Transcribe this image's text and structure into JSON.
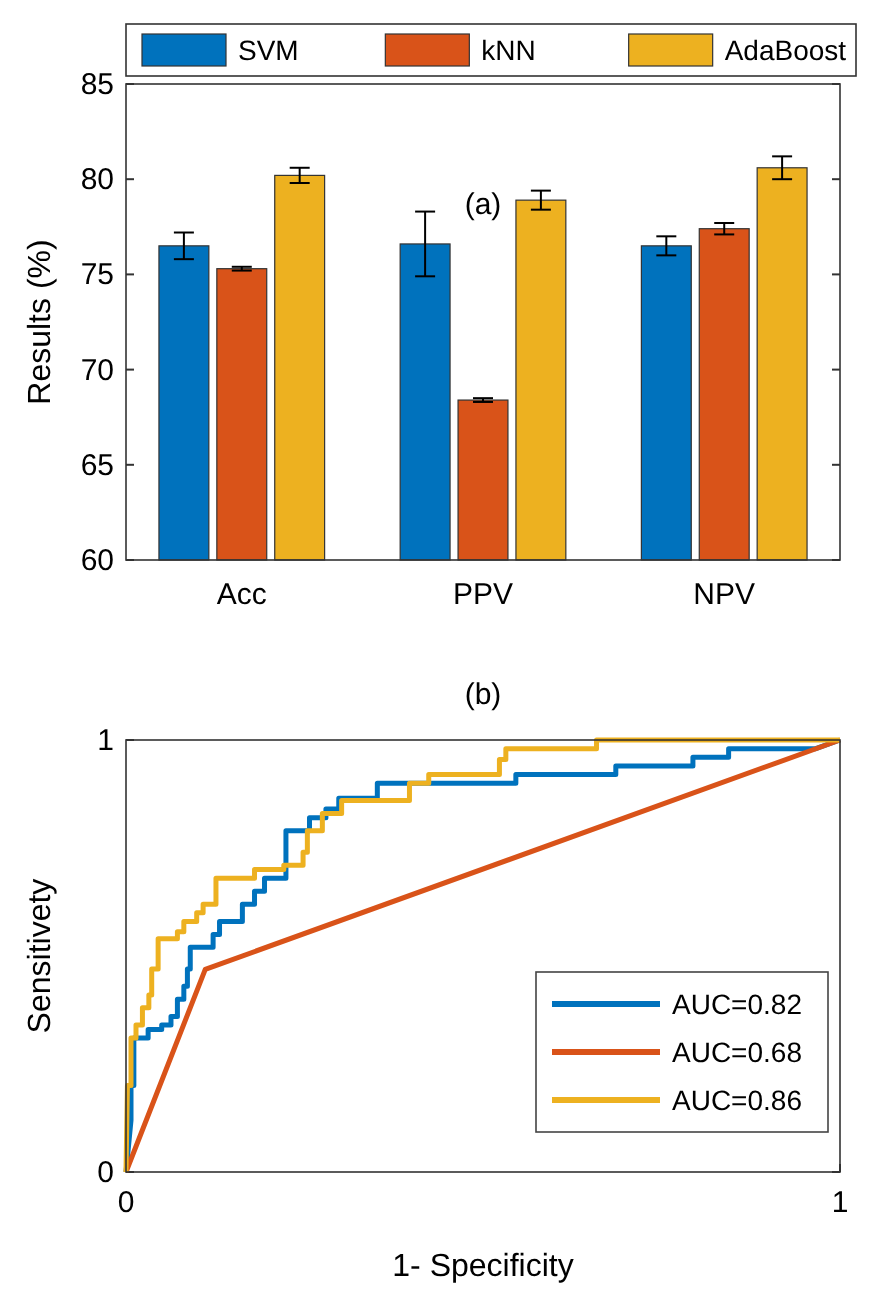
{
  "chart_data": [
    {
      "type": "bar",
      "title": "(a)",
      "ylabel": "Results (%)",
      "categories": [
        "Acc",
        "PPV",
        "NPV"
      ],
      "ylim": [
        60,
        85
      ],
      "yticks": [
        60,
        65,
        70,
        75,
        80,
        85
      ],
      "legend": "top",
      "grid": false,
      "series": [
        {
          "name": "SVM",
          "color": "#0072bd",
          "values": [
            76.5,
            76.6,
            76.5
          ],
          "errors": [
            0.7,
            1.7,
            0.5
          ]
        },
        {
          "name": "kNN",
          "color": "#d95319",
          "values": [
            75.3,
            68.4,
            77.4
          ],
          "errors": [
            0.1,
            0.1,
            0.3
          ]
        },
        {
          "name": "AdaBoost",
          "color": "#edb120",
          "values": [
            80.2,
            78.9,
            80.6
          ],
          "errors": [
            0.4,
            0.5,
            0.6
          ]
        }
      ]
    },
    {
      "type": "line",
      "title": "(b)",
      "xlabel": "1- Specificity",
      "ylabel": "Sensitivety",
      "xlim": [
        0,
        1
      ],
      "ylim": [
        0,
        1
      ],
      "xticks": [
        0,
        1
      ],
      "yticks": [
        0,
        1
      ],
      "legend": "bottom right",
      "grid": false,
      "marker": "none",
      "line_style": "solid",
      "series": [
        {
          "name": "AUC=0.82",
          "color": "#0072bd",
          "x": [
            0,
            0.007,
            0.007,
            0.011,
            0.011,
            0.031,
            0.031,
            0.05,
            0.05,
            0.063,
            0.063,
            0.072,
            0.072,
            0.081,
            0.081,
            0.086,
            0.086,
            0.09,
            0.09,
            0.122,
            0.122,
            0.131,
            0.131,
            0.163,
            0.163,
            0.18,
            0.18,
            0.194,
            0.194,
            0.224,
            0.224,
            0.257,
            0.257,
            0.28,
            0.28,
            0.298,
            0.298,
            0.352,
            0.352,
            0.546,
            0.546,
            0.686,
            0.686,
            0.794,
            0.794,
            0.844,
            0.844,
            0.966,
            1
          ],
          "values": [
            0,
            0.12,
            0.2,
            0.2,
            0.31,
            0.31,
            0.33,
            0.33,
            0.34,
            0.34,
            0.36,
            0.36,
            0.4,
            0.4,
            0.43,
            0.43,
            0.47,
            0.47,
            0.52,
            0.52,
            0.55,
            0.55,
            0.58,
            0.58,
            0.62,
            0.62,
            0.65,
            0.65,
            0.68,
            0.68,
            0.79,
            0.79,
            0.82,
            0.82,
            0.84,
            0.84,
            0.865,
            0.865,
            0.9,
            0.9,
            0.92,
            0.92,
            0.94,
            0.94,
            0.96,
            0.96,
            0.98,
            0.98,
            1
          ]
        },
        {
          "name": "AUC=0.68",
          "color": "#d95319",
          "x": [
            0,
            0.111,
            1
          ],
          "values": [
            0,
            0.469,
            1
          ]
        },
        {
          "name": "AUC=0.86",
          "color": "#edb120",
          "x": [
            0,
            0.002,
            0.007,
            0.007,
            0.014,
            0.014,
            0.023,
            0.023,
            0.032,
            0.032,
            0.036,
            0.036,
            0.045,
            0.045,
            0.072,
            0.072,
            0.081,
            0.081,
            0.099,
            0.099,
            0.108,
            0.108,
            0.126,
            0.126,
            0.18,
            0.18,
            0.221,
            0.221,
            0.248,
            0.248,
            0.254,
            0.254,
            0.275,
            0.275,
            0.302,
            0.302,
            0.397,
            0.397,
            0.424,
            0.424,
            0.523,
            0.523,
            0.532,
            0.532,
            0.659,
            0.659,
            1
          ],
          "values": [
            0,
            0.2,
            0.2,
            0.31,
            0.31,
            0.34,
            0.34,
            0.38,
            0.38,
            0.41,
            0.41,
            0.47,
            0.47,
            0.54,
            0.54,
            0.556,
            0.556,
            0.58,
            0.58,
            0.6,
            0.6,
            0.62,
            0.62,
            0.68,
            0.68,
            0.7,
            0.7,
            0.71,
            0.71,
            0.74,
            0.74,
            0.79,
            0.79,
            0.83,
            0.83,
            0.86,
            0.86,
            0.9,
            0.9,
            0.92,
            0.92,
            0.955,
            0.955,
            0.98,
            0.98,
            1,
            1
          ]
        }
      ]
    }
  ]
}
